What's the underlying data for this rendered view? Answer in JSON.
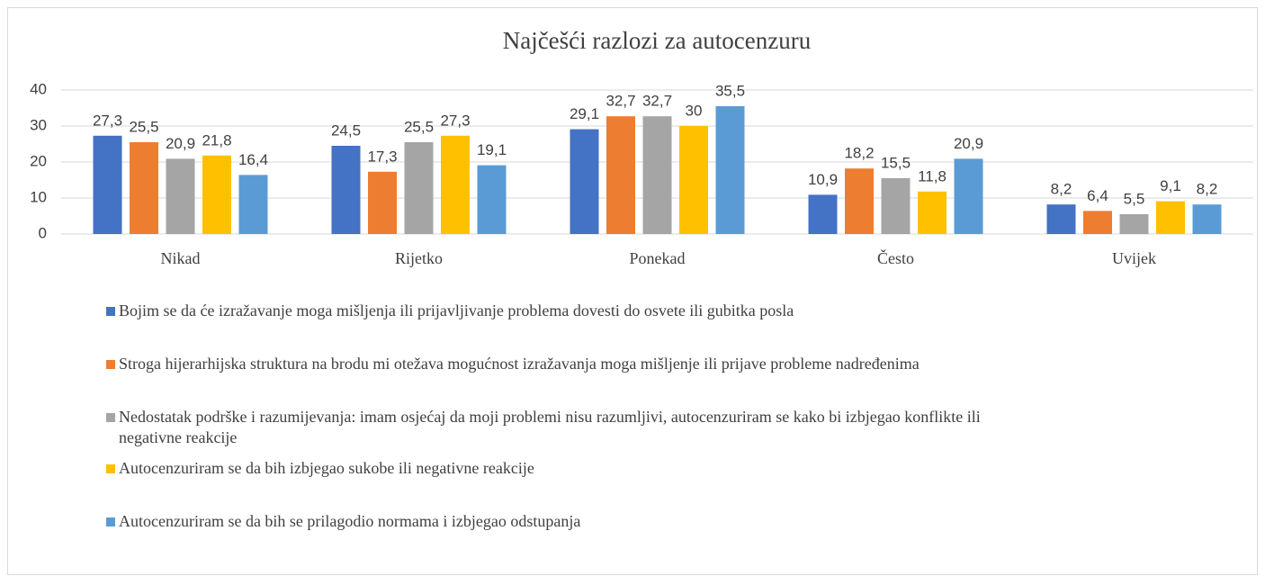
{
  "chart_data": {
    "type": "bar",
    "title": "Najčešći razlozi za autocenzuru",
    "categories": [
      "Nikad",
      "Rijetko",
      "Ponekad",
      "Često",
      "Uvijek"
    ],
    "series": [
      {
        "name": "Bojim se da će izražavanje moga mišljenja ili prijavljivanje problema dovesti do osvete ili gubitka posla",
        "color": "#4472c4",
        "values": [
          27.3,
          24.5,
          29.1,
          10.9,
          8.2
        ],
        "value_labels": [
          "27,3",
          "24,5",
          "29,1",
          "10,9",
          "8,2"
        ]
      },
      {
        "name": "Stroga hijerarhijska struktura na brodu mi otežava mogućnost izražavanja moga mišljenje ili prijave probleme nadređenima",
        "color": "#ed7d31",
        "values": [
          25.5,
          17.3,
          32.7,
          18.2,
          6.4
        ],
        "value_labels": [
          "25,5",
          "17,3",
          "32,7",
          "18,2",
          "6,4"
        ]
      },
      {
        "name": "Nedostatak podrške i razumijevanja: imam osjećaj da moji problemi nisu razumljivi, autocenzuriram se kako bi izbjegao konflikte ili negativne reakcije",
        "color": "#a5a5a5",
        "values": [
          20.9,
          25.5,
          32.7,
          15.5,
          5.5
        ],
        "value_labels": [
          "20,9",
          "25,5",
          "32,7",
          "15,5",
          "5,5"
        ]
      },
      {
        "name": "Autocenzuriram se da bih izbjegao sukobe ili negativne reakcije",
        "color": "#ffc000",
        "values": [
          21.8,
          27.3,
          30,
          11.8,
          9.1
        ],
        "value_labels": [
          "21,8",
          "27,3",
          "30",
          "11,8",
          "9,1"
        ]
      },
      {
        "name": "Autocenzuriram se da bih se prilagodio normama i izbjegao odstupanja",
        "color": "#5b9bd5",
        "values": [
          16.4,
          19.1,
          35.5,
          20.9,
          8.2
        ],
        "value_labels": [
          "16,4",
          "19,1",
          "35,5",
          "20,9",
          "8,2"
        ]
      }
    ],
    "ylim": [
      0,
      40
    ],
    "yticks": [
      0,
      10,
      20,
      30,
      40
    ],
    "grid": true,
    "legend": "bottom"
  }
}
